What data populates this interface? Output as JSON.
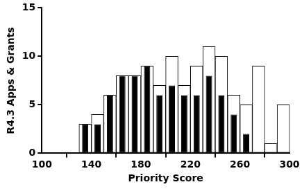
{
  "chart_data": {
    "type": "histogram",
    "x_label": "Priority Score",
    "y_label": "R4.3 Apps & Grants",
    "bins": [
      130,
      140,
      150,
      160,
      170,
      180,
      190,
      200,
      210,
      220,
      230,
      240,
      250,
      260,
      270,
      280,
      290,
      300
    ],
    "series": [
      {
        "color": "#ffffff",
        "values": [
          3,
          4,
          6,
          8,
          8,
          9,
          7,
          10,
          7,
          9,
          11,
          10,
          6,
          5,
          9,
          1,
          5
        ]
      },
      {
        "color": "#000000",
        "values": [
          3,
          3,
          6,
          8,
          8,
          9,
          6,
          7,
          6,
          6,
          8,
          6,
          4,
          2,
          0,
          0,
          0
        ]
      }
    ],
    "xlim": [
      100,
      300
    ],
    "xticks": [
      100,
      140,
      180,
      220,
      260,
      300
    ],
    "ylim": [
      0,
      15
    ],
    "yticks": [
      0,
      5,
      10,
      15
    ],
    "grid": false
  }
}
